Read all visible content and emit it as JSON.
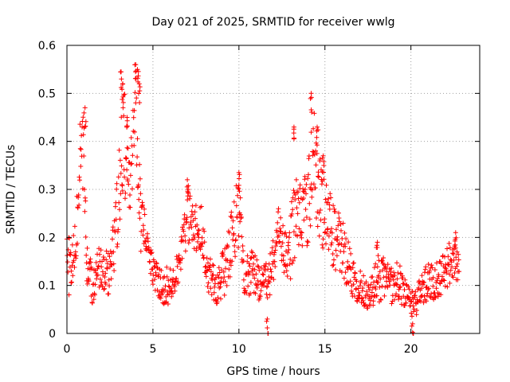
{
  "chart_data": {
    "type": "scatter",
    "title": "Day 021 of 2025, SRMTID for receiver wwlg",
    "xlabel": "GPS time / hours",
    "ylabel": "SRMTID / TECUs",
    "xlim": [
      0,
      24
    ],
    "ylim": [
      0,
      0.6
    ],
    "xticks": [
      0,
      5,
      10,
      15,
      20
    ],
    "xtick_labels": [
      "0",
      "5",
      "10",
      "15",
      "20"
    ],
    "yticks": [
      0,
      0.1,
      0.2,
      0.3,
      0.4,
      0.5,
      0.6
    ],
    "ytick_labels": [
      "0",
      "0.1",
      "0.2",
      "0.3",
      "0.4",
      "0.5",
      "0.6"
    ],
    "grid": true,
    "marker": "plus",
    "series": [
      {
        "name": "SRMTID",
        "color": "#ff0000",
        "envelope": [
          [
            0.0,
            0.15,
            0.08
          ],
          [
            0.3,
            0.13,
            0.06
          ],
          [
            0.55,
            0.2,
            0.06
          ],
          [
            0.75,
            0.36,
            0.08
          ],
          [
            1.0,
            0.37,
            0.09
          ],
          [
            1.15,
            0.14,
            0.04
          ],
          [
            1.5,
            0.11,
            0.05
          ],
          [
            1.8,
            0.14,
            0.04
          ],
          [
            2.2,
            0.12,
            0.05
          ],
          [
            2.6,
            0.14,
            0.05
          ],
          [
            3.0,
            0.28,
            0.08
          ],
          [
            3.3,
            0.42,
            0.12
          ],
          [
            3.6,
            0.3,
            0.08
          ],
          [
            4.0,
            0.47,
            0.1
          ],
          [
            4.3,
            0.25,
            0.08
          ],
          [
            4.6,
            0.2,
            0.04
          ],
          [
            5.0,
            0.13,
            0.03
          ],
          [
            5.5,
            0.1,
            0.04
          ],
          [
            6.0,
            0.1,
            0.04
          ],
          [
            6.5,
            0.15,
            0.04
          ],
          [
            7.0,
            0.24,
            0.06
          ],
          [
            7.4,
            0.22,
            0.05
          ],
          [
            7.8,
            0.22,
            0.05
          ],
          [
            8.2,
            0.12,
            0.04
          ],
          [
            8.8,
            0.1,
            0.05
          ],
          [
            9.3,
            0.14,
            0.05
          ],
          [
            9.7,
            0.22,
            0.07
          ],
          [
            10.0,
            0.25,
            0.08
          ],
          [
            10.3,
            0.12,
            0.04
          ],
          [
            10.8,
            0.13,
            0.05
          ],
          [
            11.4,
            0.1,
            0.04
          ],
          [
            11.8,
            0.12,
            0.05
          ],
          [
            12.3,
            0.21,
            0.05
          ],
          [
            12.8,
            0.15,
            0.05
          ],
          [
            13.2,
            0.22,
            0.1
          ],
          [
            13.6,
            0.27,
            0.08
          ],
          [
            14.0,
            0.24,
            0.1
          ],
          [
            14.3,
            0.38,
            0.1
          ],
          [
            14.7,
            0.28,
            0.1
          ],
          [
            15.0,
            0.25,
            0.08
          ],
          [
            15.5,
            0.2,
            0.07
          ],
          [
            16.0,
            0.18,
            0.06
          ],
          [
            16.5,
            0.13,
            0.05
          ],
          [
            17.0,
            0.1,
            0.04
          ],
          [
            17.5,
            0.08,
            0.03
          ],
          [
            18.0,
            0.1,
            0.05
          ],
          [
            18.4,
            0.12,
            0.04
          ],
          [
            18.8,
            0.1,
            0.04
          ],
          [
            19.3,
            0.11,
            0.04
          ],
          [
            19.8,
            0.07,
            0.03
          ],
          [
            20.2,
            0.06,
            0.03
          ],
          [
            20.6,
            0.09,
            0.03
          ],
          [
            21.0,
            0.11,
            0.04
          ],
          [
            21.5,
            0.11,
            0.04
          ],
          [
            22.0,
            0.13,
            0.04
          ],
          [
            22.4,
            0.16,
            0.05
          ],
          [
            22.8,
            0.14,
            0.03
          ]
        ],
        "spikes": [
          [
            1.05,
            0.47
          ],
          [
            3.15,
            0.545
          ],
          [
            3.25,
            0.52
          ],
          [
            4.0,
            0.56
          ],
          [
            4.1,
            0.55
          ],
          [
            4.2,
            0.52
          ],
          [
            3.5,
            0.45
          ],
          [
            7.0,
            0.32
          ],
          [
            10.0,
            0.335
          ],
          [
            13.2,
            0.43
          ],
          [
            14.2,
            0.5
          ],
          [
            14.55,
            0.43
          ],
          [
            14.9,
            0.37
          ],
          [
            18.05,
            0.19
          ],
          [
            22.6,
            0.21
          ],
          [
            20.1,
            0.02
          ],
          [
            11.65,
            0.03
          ]
        ]
      }
    ]
  }
}
